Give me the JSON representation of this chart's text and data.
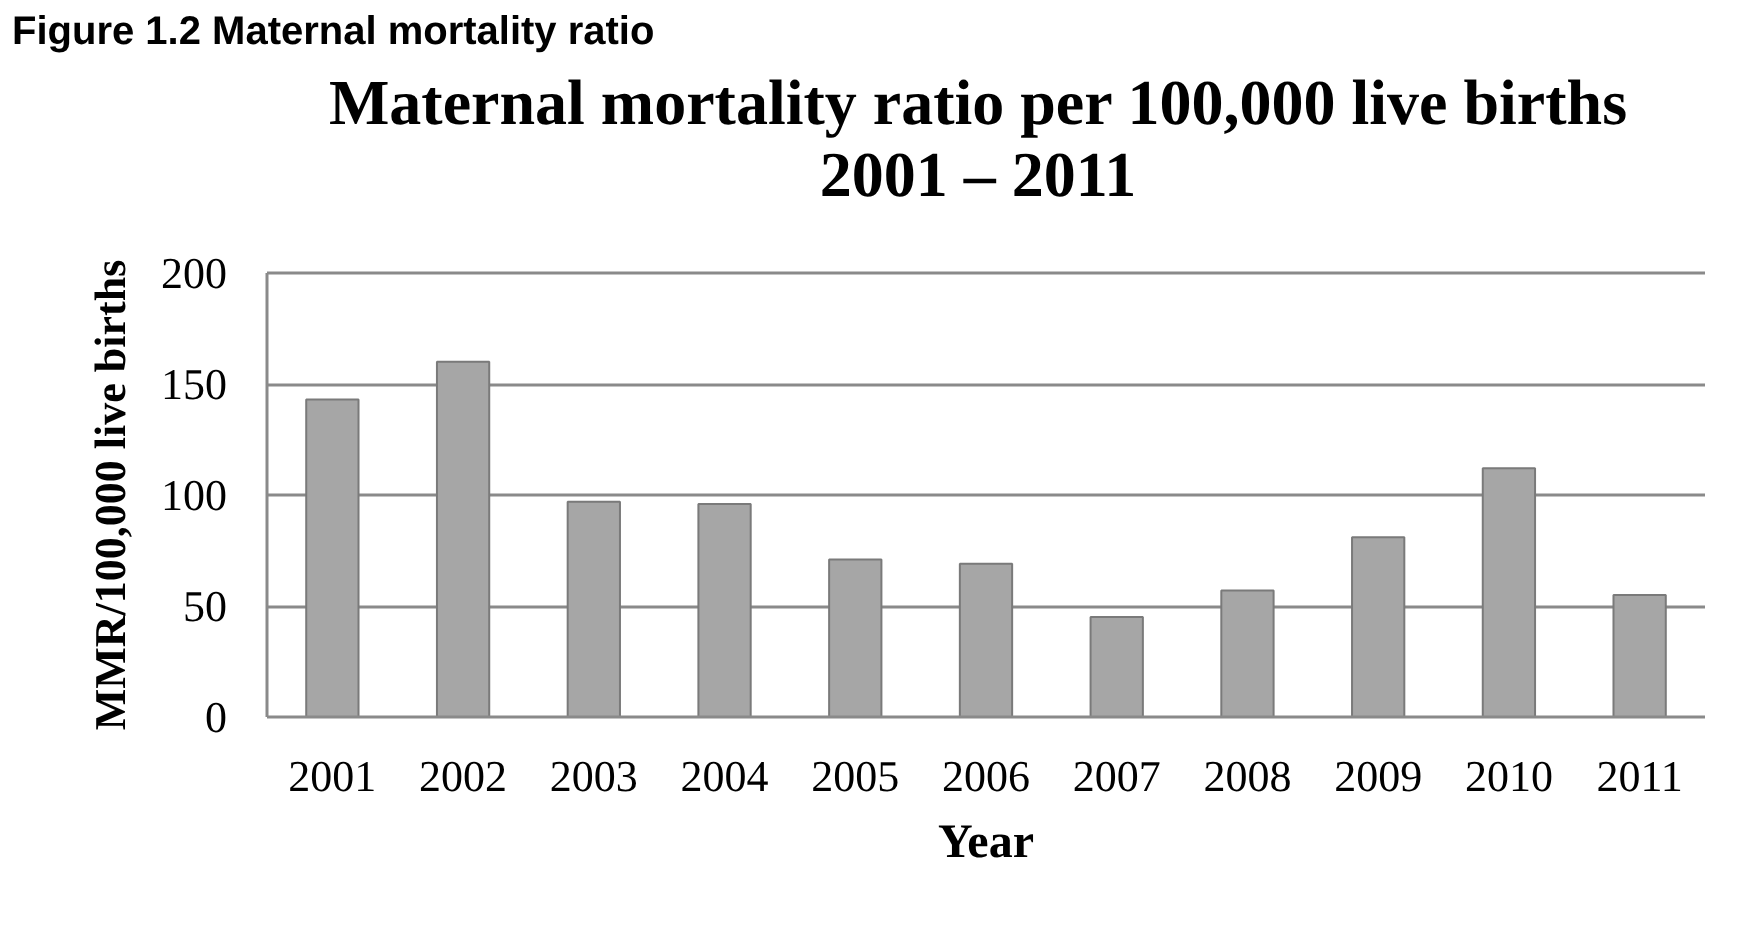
{
  "chart_data": {
    "type": "bar",
    "title": "Maternal mortality ratio per 100,000 live births\n2001 – 2011",
    "annotations": [
      "Figure 1.2 Maternal mortality ratio"
    ],
    "xlabel": "Year",
    "ylabel": "MMR/100,000 live births",
    "categories": [
      "2001",
      "2002",
      "2003",
      "2004",
      "2005",
      "2006",
      "2007",
      "2008",
      "2009",
      "2010",
      "2011"
    ],
    "values": [
      143,
      160,
      97,
      96,
      71,
      69,
      45,
      57,
      81,
      112,
      55
    ],
    "color": "#a6a6a6",
    "ylim": [
      0,
      200
    ],
    "yticks": [
      0,
      50,
      100,
      150,
      200
    ],
    "grid": "y"
  }
}
